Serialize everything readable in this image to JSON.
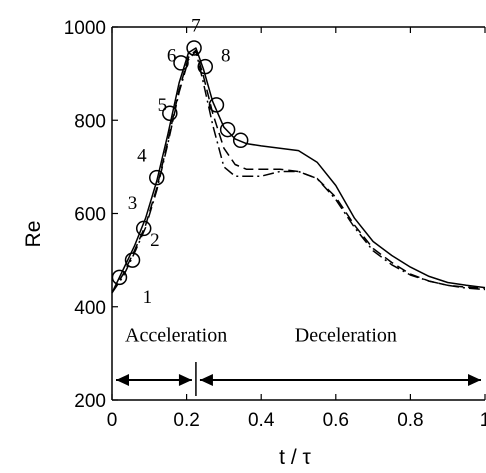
{
  "chart_data": {
    "type": "line",
    "xlabel": "t / τ",
    "ylabel": "Re",
    "xlim": [
      0,
      1
    ],
    "ylim": [
      200,
      1000
    ],
    "xticks": [
      {
        "value": 0,
        "label": "0"
      },
      {
        "value": 0.2,
        "label": "0.2"
      },
      {
        "value": 0.4,
        "label": "0.4"
      },
      {
        "value": 0.6,
        "label": "0.6"
      },
      {
        "value": 0.8,
        "label": "0.8"
      },
      {
        "value": 1,
        "label": "1"
      }
    ],
    "yticks": [
      {
        "value": 200,
        "label": "200"
      },
      {
        "value": 400,
        "label": "400"
      },
      {
        "value": 600,
        "label": "600"
      },
      {
        "value": 800,
        "label": "800"
      },
      {
        "value": 1000,
        "label": "1000"
      }
    ],
    "series": [
      {
        "style": "solid",
        "x": [
          0,
          0.03,
          0.06,
          0.09,
          0.12,
          0.15,
          0.18,
          0.205,
          0.225,
          0.245,
          0.27,
          0.3,
          0.33,
          0.36,
          0.4,
          0.45,
          0.5,
          0.55,
          0.6,
          0.65,
          0.7,
          0.75,
          0.8,
          0.85,
          0.9,
          0.95,
          1.0
        ],
        "y": [
          430,
          480,
          530,
          590,
          670,
          770,
          880,
          945,
          955,
          910,
          840,
          785,
          760,
          750,
          745,
          740,
          735,
          710,
          660,
          590,
          540,
          510,
          485,
          465,
          452,
          446,
          441
        ]
      },
      {
        "style": "dashed",
        "x": [
          0,
          0.03,
          0.06,
          0.09,
          0.12,
          0.15,
          0.18,
          0.205,
          0.225,
          0.245,
          0.27,
          0.3,
          0.33,
          0.36,
          0.4,
          0.45,
          0.5,
          0.55,
          0.6,
          0.65,
          0.7,
          0.75,
          0.8,
          0.85,
          0.9,
          0.95,
          1.0
        ],
        "y": [
          430,
          470,
          520,
          575,
          655,
          755,
          865,
          935,
          950,
          895,
          815,
          740,
          705,
          695,
          695,
          695,
          690,
          675,
          635,
          575,
          525,
          495,
          470,
          455,
          446,
          442,
          440
        ]
      },
      {
        "style": "dashdot",
        "x": [
          0,
          0.03,
          0.06,
          0.09,
          0.12,
          0.15,
          0.18,
          0.205,
          0.225,
          0.245,
          0.27,
          0.3,
          0.33,
          0.36,
          0.4,
          0.45,
          0.5,
          0.55,
          0.6,
          0.65,
          0.7,
          0.75,
          0.8,
          0.85,
          0.9,
          0.95,
          1.0
        ],
        "y": [
          430,
          465,
          515,
          570,
          650,
          750,
          860,
          930,
          948,
          880,
          790,
          700,
          680,
          680,
          680,
          690,
          690,
          675,
          630,
          570,
          520,
          490,
          468,
          455,
          446,
          440,
          437
        ]
      }
    ],
    "markers": {
      "shape": "circle",
      "x": [
        0.02,
        0.055,
        0.085,
        0.12,
        0.155,
        0.185,
        0.22,
        0.25,
        0.28,
        0.31,
        0.345
      ],
      "y": [
        463,
        500,
        568,
        677,
        815,
        923,
        955,
        915,
        833,
        780,
        757
      ]
    },
    "point_labels": [
      {
        "text": "1",
        "x": 0.095,
        "y": 408
      },
      {
        "text": "2",
        "x": 0.115,
        "y": 530
      },
      {
        "text": "3",
        "x": 0.055,
        "y": 610
      },
      {
        "text": "4",
        "x": 0.08,
        "y": 712
      },
      {
        "text": "5",
        "x": 0.135,
        "y": 820
      },
      {
        "text": "6",
        "x": 0.16,
        "y": 926
      },
      {
        "text": "7",
        "x": 0.225,
        "y": 990
      },
      {
        "text": "8",
        "x": 0.305,
        "y": 926
      }
    ],
    "annotations": [
      {
        "text": "Acceleration",
        "x": 0.035,
        "y": 325
      },
      {
        "text": "Deceleration",
        "x": 0.49,
        "y": 325
      }
    ],
    "phase_divider_x": 0.225
  }
}
